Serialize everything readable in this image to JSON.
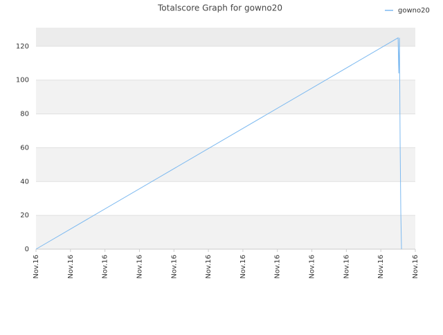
{
  "chart_data": {
    "type": "line",
    "title": "Totalscore Graph for gowno20",
    "x": [
      0,
      10.5,
      10.52,
      10.54,
      10.56,
      10.58,
      10.6
    ],
    "series": [
      {
        "name": "gowno20",
        "color": "#7cb9f0",
        "values": [
          0,
          125,
          104,
          125,
          62,
          21,
          0
        ]
      }
    ],
    "xlim": [
      0,
      11
    ],
    "xticks": [
      {
        "value": 0,
        "label": "Nov.16"
      },
      {
        "value": 1,
        "label": "Nov.16"
      },
      {
        "value": 2,
        "label": "Nov.16"
      },
      {
        "value": 3,
        "label": "Nov.16"
      },
      {
        "value": 4,
        "label": "Nov.16"
      },
      {
        "value": 5,
        "label": "Nov.16"
      },
      {
        "value": 6,
        "label": "Nov.16"
      },
      {
        "value": 7,
        "label": "Nov.16"
      },
      {
        "value": 8,
        "label": "Nov.16"
      },
      {
        "value": 9,
        "label": "Nov.16"
      },
      {
        "value": 10,
        "label": "Nov.16"
      },
      {
        "value": 11,
        "label": "Nov.16"
      }
    ],
    "ylim": [
      0,
      131
    ],
    "yticks": [
      0,
      20,
      40,
      60,
      80,
      100,
      120
    ],
    "grid": true,
    "legend": "top-right"
  }
}
